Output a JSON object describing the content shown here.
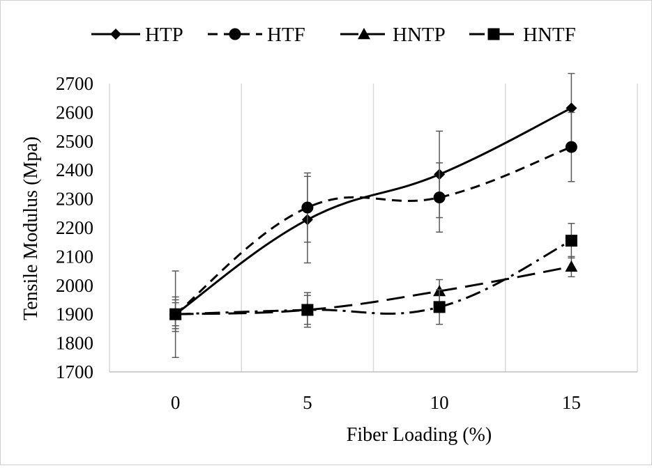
{
  "chart_data": {
    "type": "line",
    "title": "",
    "xlabel": "Fiber Loading  (%)",
    "ylabel": "Tensile Modulus (Mpa)",
    "categories": [
      "0",
      "5",
      "10",
      "15"
    ],
    "ylim": [
      1700,
      2700
    ],
    "yticks": [
      1700,
      1800,
      1900,
      2000,
      2100,
      2200,
      2300,
      2400,
      2500,
      2600,
      2700
    ],
    "grid": "vertical",
    "legend_position": "top",
    "series": [
      {
        "name": "HTP",
        "values": [
          1900,
          2228,
          2385,
          2615
        ],
        "error": [
          150,
          150,
          150,
          120
        ],
        "marker": "diamond",
        "dash": "solid",
        "color": "#000000"
      },
      {
        "name": "HTF",
        "values": [
          1900,
          2270,
          2305,
          2480
        ],
        "error": [
          60,
          120,
          120,
          120
        ],
        "marker": "circle",
        "dash": "dash",
        "color": "#000000"
      },
      {
        "name": "HNTP",
        "values": [
          1900,
          1915,
          1980,
          2065
        ],
        "error": [
          40,
          50,
          40,
          35
        ],
        "marker": "triangle",
        "dash": "longdash",
        "color": "#000000"
      },
      {
        "name": "HNTF",
        "values": [
          1900,
          1915,
          1925,
          2155
        ],
        "error": [
          50,
          60,
          60,
          60
        ],
        "marker": "square",
        "dash": "dashdot",
        "color": "#000000"
      }
    ]
  }
}
